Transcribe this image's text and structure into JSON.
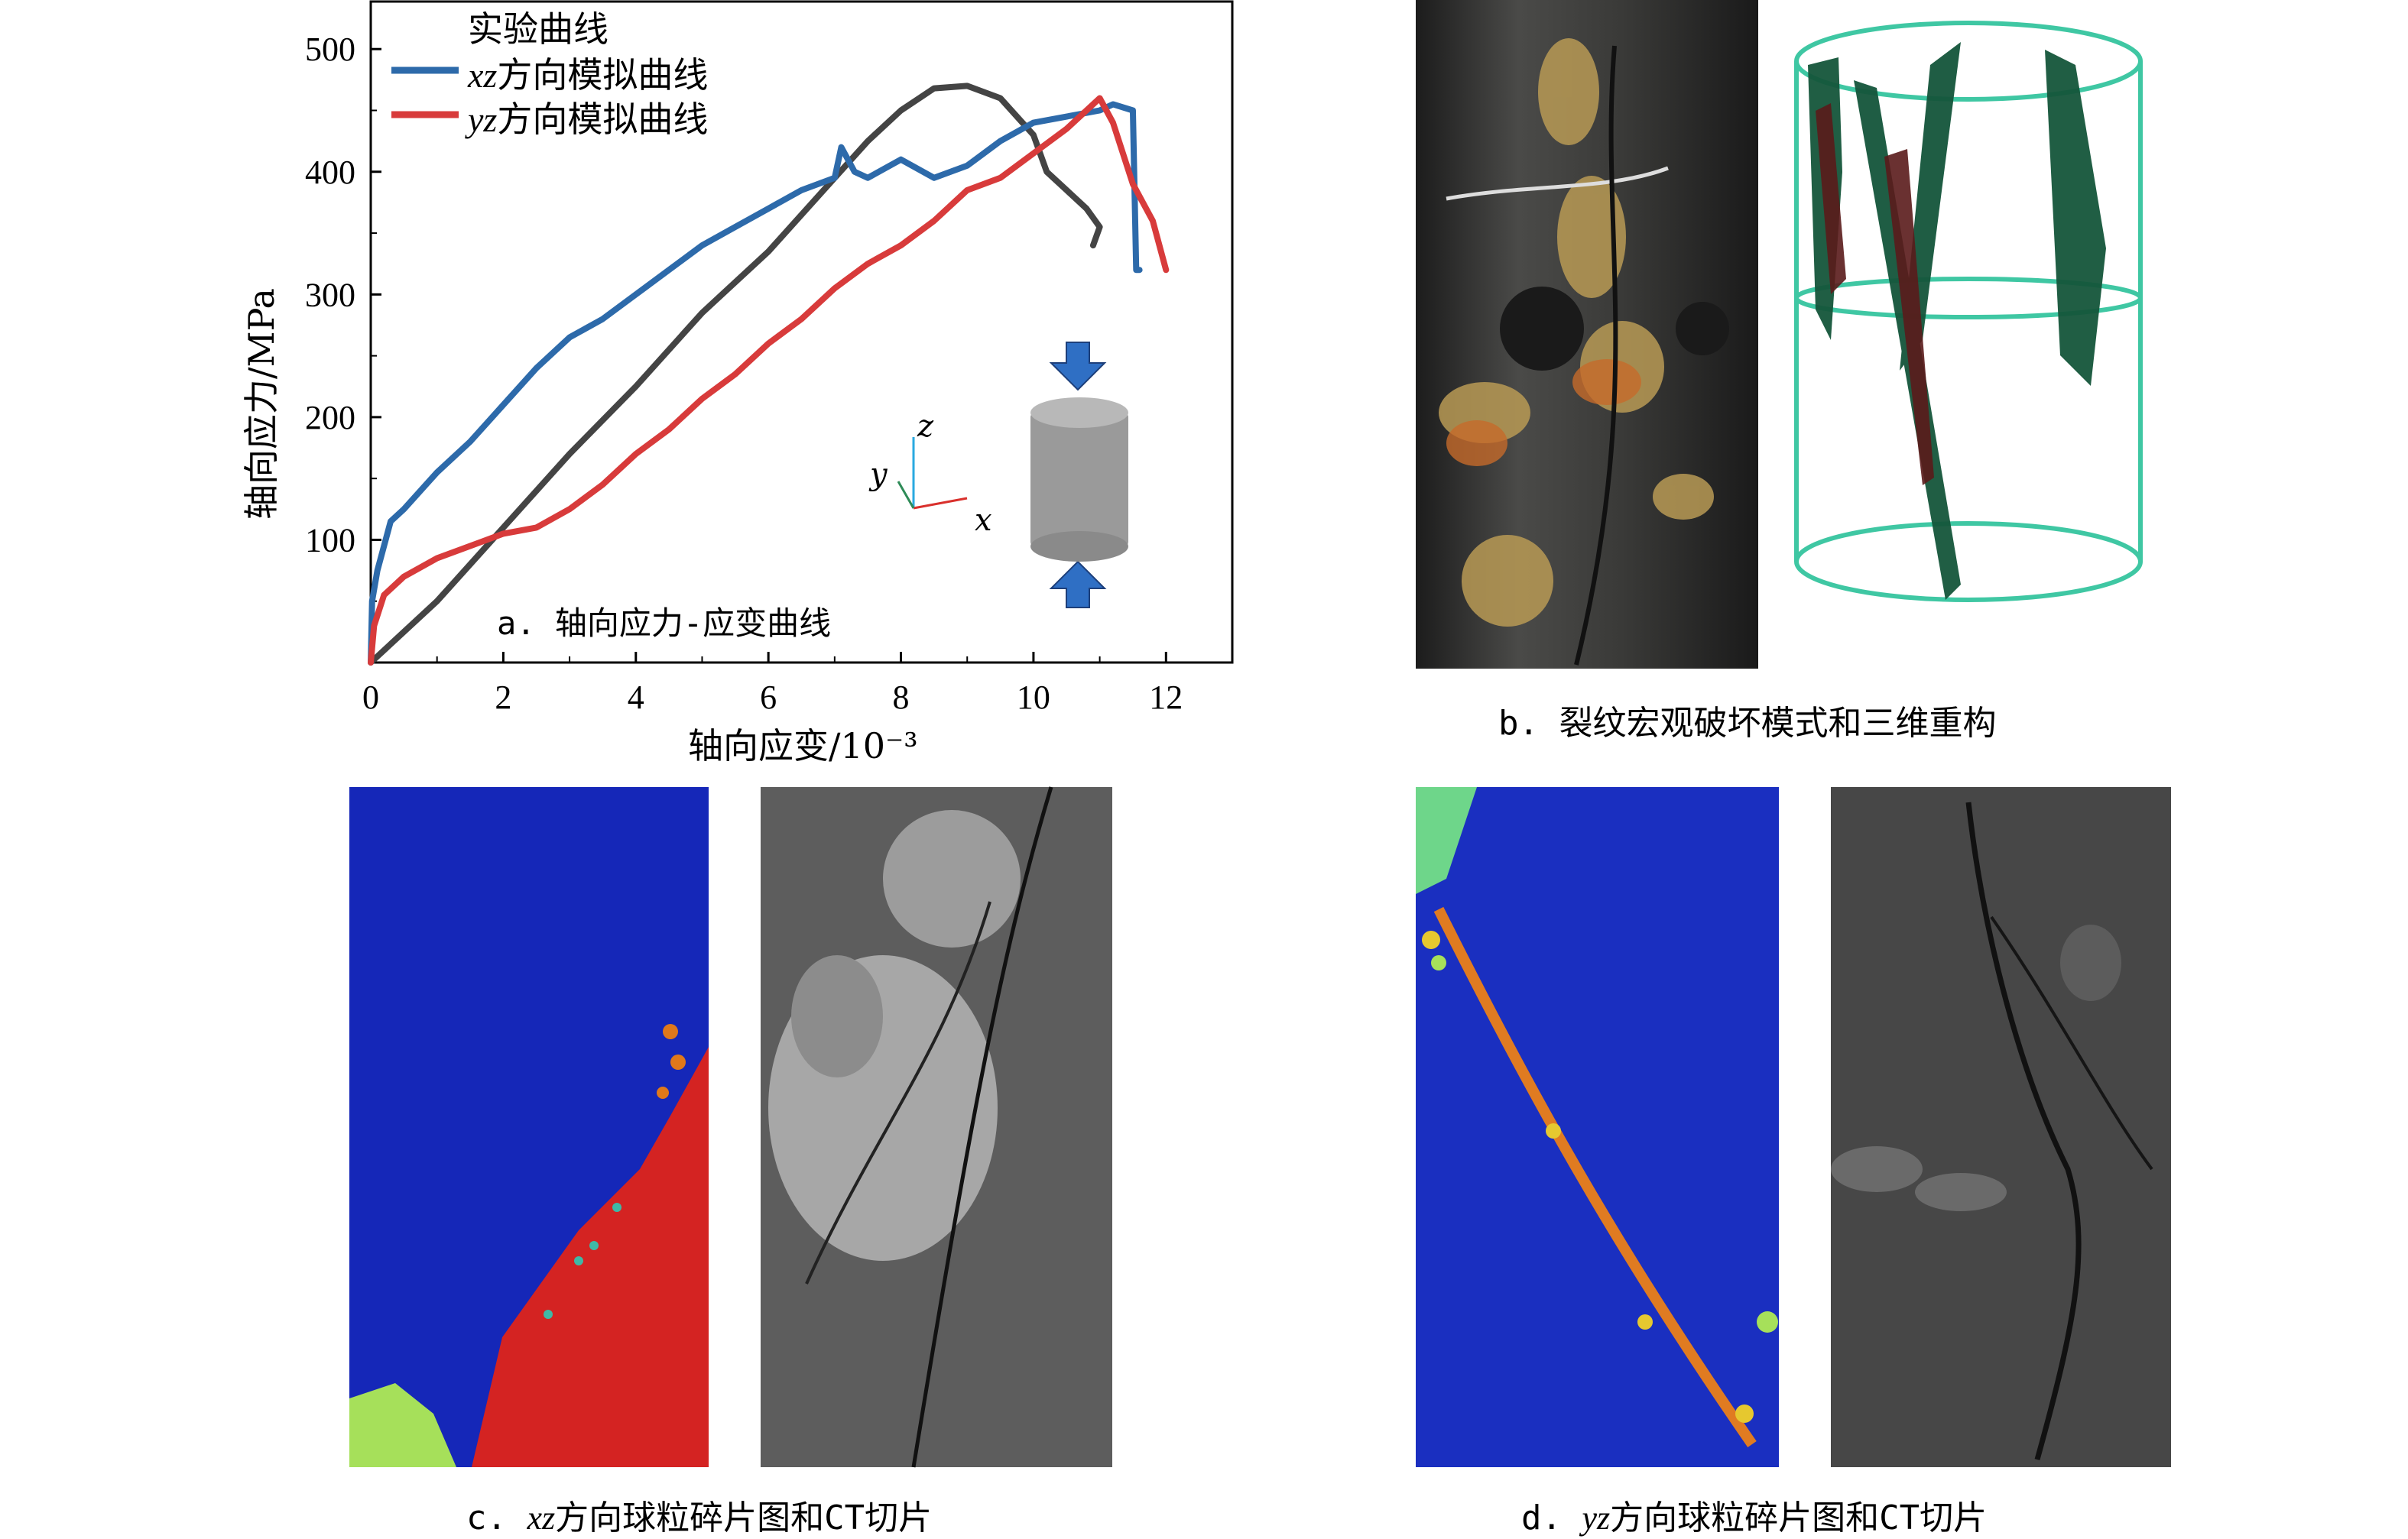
{
  "panel_a": {
    "inner_label": "a. 轴向应力-应变曲线",
    "legend": [
      {
        "text": "实验曲线",
        "italic_prefix": "",
        "rest": "实验曲线",
        "color": "#444444"
      },
      {
        "text": "xz方向模拟曲线",
        "italic_prefix": "xz",
        "rest": "方向模拟曲线",
        "color": "#2D6AAA"
      },
      {
        "text": "yz方向模拟曲线",
        "italic_prefix": "yz",
        "rest": "方向模拟曲线",
        "color": "#D83B3B"
      }
    ],
    "axis_labels": {
      "z": "z",
      "y": "y",
      "x": "x"
    }
  },
  "chart_data": {
    "type": "line",
    "xlabel": "轴向应变/10⁻³",
    "ylabel": "轴向应力/MPa",
    "xlim": [
      0,
      13
    ],
    "ylim": [
      0,
      540
    ],
    "x_ticks": [
      0,
      2,
      4,
      6,
      8,
      10,
      12
    ],
    "y_ticks": [
      100,
      200,
      300,
      400,
      500
    ],
    "x_tick_labels": [
      "0",
      "2",
      "4",
      "6",
      "8",
      "10",
      "12"
    ],
    "y_tick_labels": [
      "100",
      "200",
      "300",
      "400",
      "500"
    ],
    "grid": false,
    "legend_position": "top-left",
    "series": [
      {
        "name": "实验曲线",
        "color": "#444444",
        "x": [
          0,
          1,
          2,
          3,
          4,
          5,
          6,
          7,
          7.5,
          8,
          8.5,
          9,
          9.5,
          10,
          10.2,
          10.5,
          10.8,
          11,
          10.9
        ],
        "y": [
          0,
          50,
          110,
          170,
          225,
          285,
          335,
          395,
          425,
          450,
          468,
          470,
          460,
          430,
          400,
          385,
          370,
          355,
          340
        ]
      },
      {
        "name": "xz方向模拟曲线",
        "color": "#2D6AAA",
        "x": [
          0,
          0.02,
          0.1,
          0.3,
          0.5,
          1,
          1.5,
          2,
          2.5,
          3,
          3.5,
          4,
          4.5,
          5,
          5.5,
          6,
          6.5,
          7,
          7.1,
          7.3,
          7.5,
          8,
          8.5,
          9,
          9.5,
          10,
          10.5,
          11,
          11.2,
          11.5,
          11.55,
          11.6
        ],
        "y": [
          0,
          50,
          75,
          115,
          125,
          155,
          180,
          210,
          240,
          265,
          280,
          300,
          320,
          340,
          355,
          370,
          385,
          395,
          420,
          400,
          395,
          410,
          395,
          405,
          425,
          440,
          445,
          450,
          455,
          450,
          320,
          320
        ]
      },
      {
        "name": "yz方向模拟曲线",
        "color": "#D83B3B",
        "x": [
          0,
          0.05,
          0.2,
          0.5,
          1,
          1.5,
          2,
          2.5,
          3,
          3.5,
          4,
          4.5,
          5,
          5.5,
          6,
          6.5,
          7,
          7.5,
          8,
          8.5,
          9,
          9.5,
          10,
          10.5,
          11,
          11.2,
          11.5,
          11.8,
          12
        ],
        "y": [
          0,
          30,
          55,
          70,
          85,
          95,
          105,
          110,
          125,
          145,
          170,
          190,
          215,
          235,
          260,
          280,
          305,
          325,
          340,
          360,
          385,
          395,
          415,
          435,
          460,
          440,
          390,
          360,
          320
        ]
      }
    ]
  },
  "captions": {
    "b": "b. 裂纹宏观破坏模式和三维重构",
    "c_prefix": "c. ",
    "c_italic": "xz",
    "c_rest": "方向球粒碎片图和CT切片",
    "d_prefix": "d. ",
    "d_italic": "yz",
    "d_rest": "方向球粒碎片图和CT切片"
  }
}
